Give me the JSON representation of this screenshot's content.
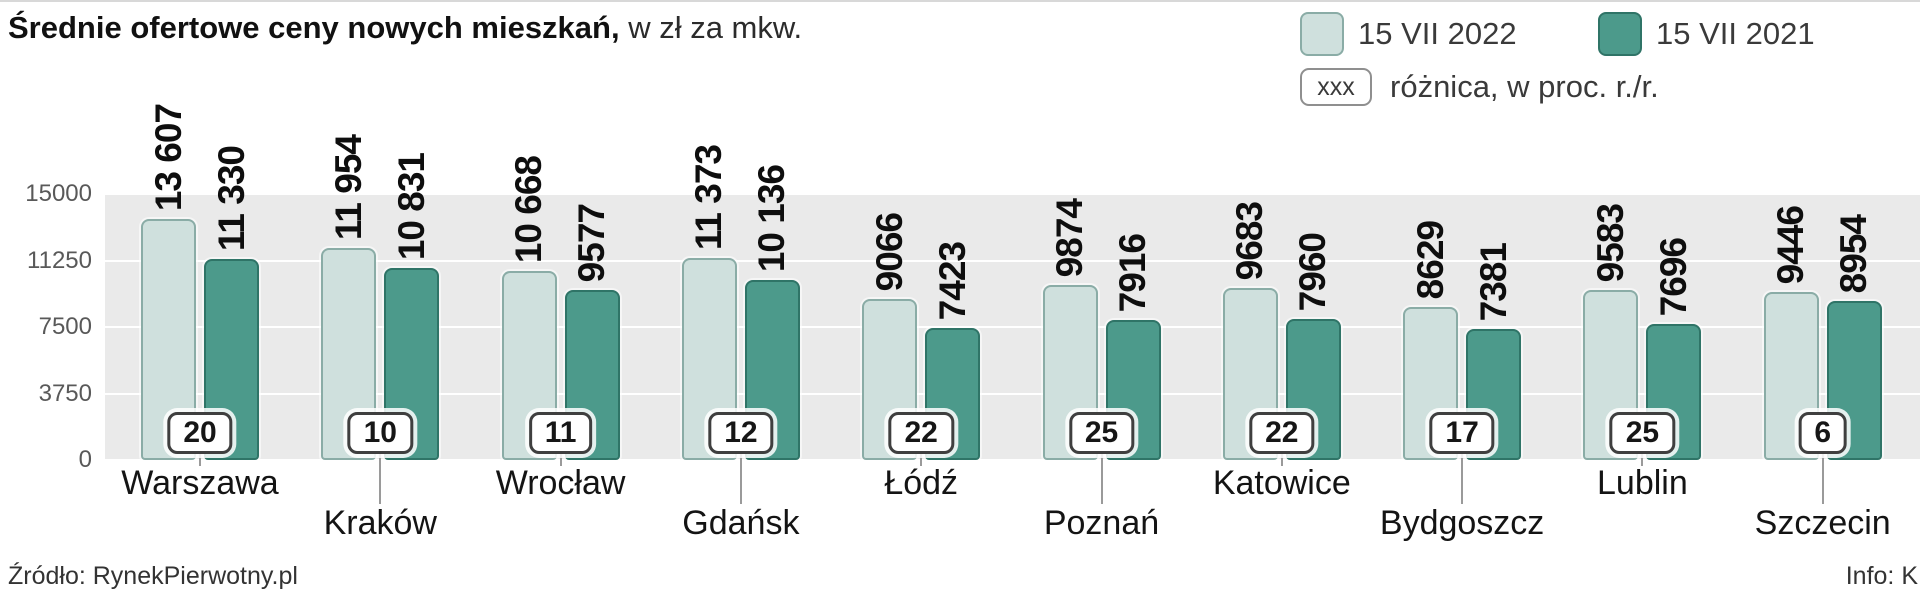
{
  "title": {
    "bold": "Średnie ofertowe ceny nowych mieszkań,",
    "regular": " w zł za mkw."
  },
  "legend": {
    "series1": "15 VII 2022",
    "series2": "15 VII 2021",
    "diff_box": "xxx",
    "diff_label": "różnica, w proc. r./r."
  },
  "footer": {
    "source": "Źródło: RynekPierwotny.pl",
    "info": "Info: K"
  },
  "colors": {
    "light": "#cfe0dd",
    "light_border": "#8aaca6",
    "dark": "#4c9a8b",
    "dark_border": "#2f7467",
    "plot_bg": "#eaeaea"
  },
  "chart_data": {
    "type": "bar",
    "title": "Średnie ofertowe ceny nowych mieszkań, w zł za mkw.",
    "categories": [
      "Warszawa",
      "Kraków",
      "Wrocław",
      "Gdańsk",
      "Łódź",
      "Poznań",
      "Katowice",
      "Bydgoszcz",
      "Lublin",
      "Szczecin"
    ],
    "series": [
      {
        "name": "15 VII 2022",
        "values": [
          13607,
          11954,
          10668,
          11373,
          9066,
          9874,
          9683,
          8629,
          9583,
          9446
        ]
      },
      {
        "name": "15 VII 2021",
        "values": [
          11330,
          10831,
          9577,
          10136,
          7423,
          7916,
          7960,
          7381,
          7696,
          8954
        ]
      }
    ],
    "value_labels": [
      [
        "13 607",
        "11 954",
        "10 668",
        "11 373",
        "9066",
        "9874",
        "9683",
        "8629",
        "9583",
        "9446"
      ],
      [
        "11 330",
        "10 831",
        "9577",
        "10 136",
        "7423",
        "7916",
        "7960",
        "7381",
        "7696",
        "8954"
      ]
    ],
    "diff_percent": [
      20,
      10,
      11,
      12,
      22,
      25,
      22,
      17,
      25,
      6
    ],
    "yticks": [
      0,
      3750,
      7500,
      11250,
      15000
    ],
    "ylim": [
      0,
      15000
    ],
    "grid": true,
    "legend_position": "top-right"
  }
}
